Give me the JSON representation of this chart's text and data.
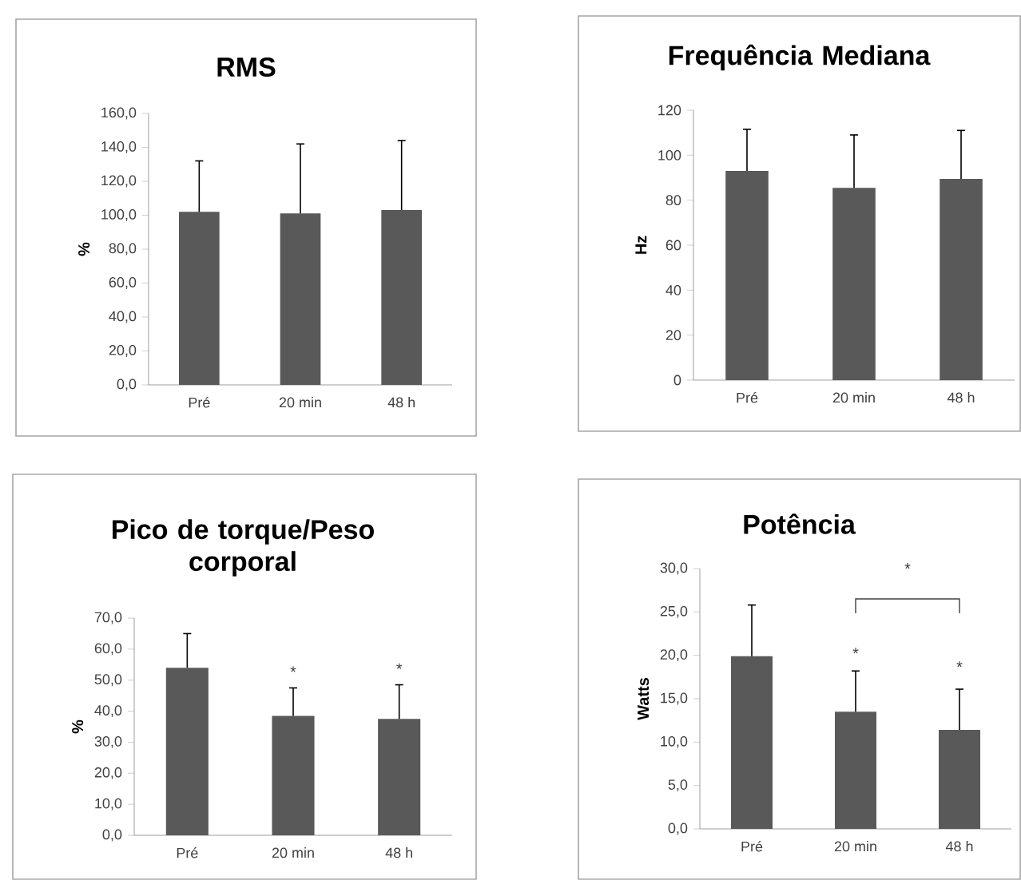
{
  "chart_data": [
    {
      "type": "bar",
      "title": "RMS",
      "ylabel": "%",
      "categories": [
        "Pré",
        "20 min",
        "48 h"
      ],
      "values": [
        102,
        101,
        103
      ],
      "color": "#595959",
      "errors": [
        [
          102,
          132
        ],
        [
          101,
          142
        ],
        [
          103,
          144
        ]
      ],
      "ylim": [
        0,
        160
      ],
      "yticks": [
        {
          "value": 0,
          "label": "0,0"
        },
        {
          "value": 20,
          "label": "20,0"
        },
        {
          "value": 40,
          "label": "40,0"
        },
        {
          "value": 60,
          "label": "60,0"
        },
        {
          "value": 80,
          "label": "80,0"
        },
        {
          "value": 100,
          "label": "100,0"
        },
        {
          "value": 120,
          "label": "120,0"
        },
        {
          "value": 140,
          "label": "140,0"
        },
        {
          "value": 160,
          "label": "160,0"
        }
      ]
    },
    {
      "type": "bar",
      "title": "Frequência Mediana",
      "ylabel": "Hz",
      "categories": [
        "Pré",
        "20 min",
        "48 h"
      ],
      "values": [
        93,
        85.5,
        89.5
      ],
      "color": "#595959",
      "errors": [
        [
          93,
          111.5
        ],
        [
          85.5,
          109
        ],
        [
          89.5,
          111
        ]
      ],
      "ylim": [
        0,
        120
      ],
      "yticks": [
        0,
        20,
        40,
        60,
        80,
        100,
        120
      ]
    },
    {
      "type": "bar",
      "title": "Pico de torque/Peso corporal",
      "ylabel": "%",
      "categories": [
        "Pré",
        "20 min",
        "48 h"
      ],
      "values": [
        54,
        38.5,
        37.5
      ],
      "color": "#595959",
      "errors": [
        [
          54,
          65
        ],
        [
          38.5,
          47.5
        ],
        [
          37.5,
          48.5
        ]
      ],
      "ylim": [
        0,
        70
      ],
      "yticks": [
        {
          "value": 0,
          "label": "0,0"
        },
        {
          "value": 10,
          "label": "10,0"
        },
        {
          "value": 20,
          "label": "20,0"
        },
        {
          "value": 30,
          "label": "30,0"
        },
        {
          "value": 40,
          "label": "40,0"
        },
        {
          "value": 50,
          "label": "50,0"
        },
        {
          "value": 60,
          "label": "60,0"
        },
        {
          "value": 70,
          "label": "70,0"
        }
      ],
      "annotations": [
        "*",
        "*"
      ]
    },
    {
      "type": "bar",
      "title": "Potência",
      "ylabel": "Watts",
      "categories": [
        "Pré",
        "20 min",
        "48 h"
      ],
      "values": [
        19.9,
        13.5,
        11.4
      ],
      "color": "#595959",
      "errors": [
        [
          19.9,
          25.8
        ],
        [
          13.5,
          18.2
        ],
        [
          11.4,
          16.1
        ]
      ],
      "ylim": [
        0,
        30
      ],
      "yticks": [
        {
          "value": 0,
          "label": "0,0"
        },
        {
          "value": 5,
          "label": "5,0"
        },
        {
          "value": 10,
          "label": "10,0"
        },
        {
          "value": 15,
          "label": "15,0"
        },
        {
          "value": 20,
          "label": "20,0"
        },
        {
          "value": 25,
          "label": "25,0"
        },
        {
          "value": 30,
          "label": "30,0"
        }
      ],
      "annotations": [
        "*",
        "*",
        "*"
      ]
    }
  ]
}
